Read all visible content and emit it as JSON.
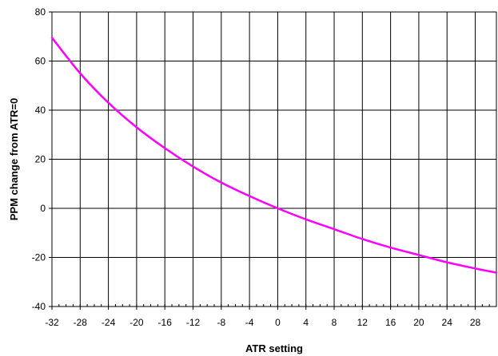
{
  "chart_data": {
    "type": "line",
    "title": "",
    "xlabel": "ATR setting",
    "ylabel": "PPM change from  ATR=0",
    "xlim": [
      -32,
      31
    ],
    "ylim": [
      -40,
      80
    ],
    "x_ticks": [
      -32,
      -28,
      -24,
      -20,
      -16,
      -12,
      -8,
      -4,
      0,
      4,
      8,
      12,
      16,
      20,
      24,
      28
    ],
    "x_tick_labels": [
      "-32",
      "-28",
      "-24",
      "-20",
      "-16",
      "-12",
      "-8",
      "-4",
      "0",
      "4",
      "8",
      "12",
      "16",
      "20",
      "24",
      "28"
    ],
    "y_ticks": [
      -40,
      -20,
      0,
      20,
      40,
      60,
      80
    ],
    "y_tick_labels": [
      "-40",
      "-20",
      "0",
      "20",
      "40",
      "60",
      "80"
    ],
    "grid": true,
    "legend": "none",
    "series": [
      {
        "color": "#ff00ff",
        "x": [
          -32,
          -28,
          -24,
          -20,
          -16,
          -12,
          -8,
          -4,
          0,
          4,
          8,
          12,
          16,
          20,
          24,
          28,
          31
        ],
        "y": [
          69.5,
          55,
          43,
          33,
          24.5,
          17,
          10.5,
          5,
          0,
          -4.5,
          -8.5,
          -12.5,
          -16,
          -19,
          -22,
          -24.5,
          -26.2
        ]
      }
    ]
  }
}
